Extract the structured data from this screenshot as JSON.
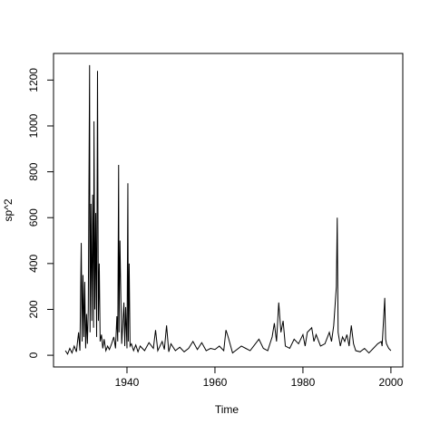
{
  "chart_data": {
    "type": "line",
    "xlabel": "Time",
    "ylabel": "sp^2",
    "x": [
      1926.0,
      1926.5,
      1927.0,
      1927.5,
      1928.0,
      1928.5,
      1929.0,
      1929.3,
      1929.6,
      1929.8,
      1930.0,
      1930.2,
      1930.4,
      1930.6,
      1930.8,
      1931.0,
      1931.2,
      1931.5,
      1931.6,
      1931.8,
      1932.0,
      1932.2,
      1932.4,
      1932.5,
      1932.7,
      1932.9,
      1933.1,
      1933.3,
      1933.5,
      1933.7,
      1933.9,
      1934.2,
      1934.5,
      1934.8,
      1935.2,
      1935.6,
      1936.0,
      1936.5,
      1937.0,
      1937.4,
      1937.7,
      1937.9,
      1938.1,
      1938.2,
      1938.4,
      1938.6,
      1938.8,
      1939.0,
      1939.3,
      1939.5,
      1939.7,
      1940.0,
      1940.2,
      1940.3,
      1940.5,
      1940.7,
      1941.0,
      1941.5,
      1942.0,
      1942.5,
      1943.0,
      1944.0,
      1945.0,
      1946.0,
      1946.5,
      1947.0,
      1948.0,
      1948.5,
      1949.0,
      1949.5,
      1950.0,
      1951.0,
      1952.0,
      1953.0,
      1954.0,
      1955.0,
      1956.0,
      1957.0,
      1958.0,
      1959.0,
      1960.0,
      1961.0,
      1962.0,
      1962.5,
      1963.0,
      1964.0,
      1965.0,
      1966.0,
      1967.0,
      1968.0,
      1969.0,
      1970.0,
      1971.0,
      1972.0,
      1973.0,
      1973.5,
      1974.0,
      1974.5,
      1975.0,
      1975.5,
      1976.0,
      1977.0,
      1978.0,
      1979.0,
      1980.0,
      1980.5,
      1981.0,
      1982.0,
      1982.5,
      1983.0,
      1984.0,
      1985.0,
      1986.0,
      1986.5,
      1987.0,
      1987.6,
      1987.8,
      1988.0,
      1988.5,
      1989.0,
      1989.5,
      1990.0,
      1990.5,
      1991.0,
      1991.5,
      1992.0,
      1993.0,
      1994.0,
      1995.0,
      1996.0,
      1997.0,
      1997.8,
      1998.0,
      1998.6,
      1998.8,
      1999.0,
      1999.5,
      2000.0
    ],
    "series": [
      {
        "name": "sp^2",
        "color": "#000000",
        "values": [
          20,
          5,
          30,
          10,
          40,
          15,
          100,
          20,
          490,
          60,
          350,
          80,
          320,
          30,
          180,
          50,
          200,
          1265,
          100,
          660,
          150,
          700,
          120,
          1020,
          200,
          620,
          80,
          1240,
          150,
          400,
          60,
          90,
          30,
          70,
          20,
          40,
          25,
          50,
          80,
          30,
          170,
          60,
          830,
          100,
          500,
          260,
          50,
          120,
          230,
          40,
          210,
          30,
          750,
          60,
          400,
          40,
          50,
          20,
          45,
          15,
          40,
          20,
          55,
          30,
          110,
          20,
          60,
          25,
          130,
          15,
          50,
          20,
          35,
          15,
          30,
          60,
          25,
          55,
          20,
          30,
          25,
          40,
          20,
          110,
          80,
          10,
          25,
          40,
          30,
          20,
          45,
          70,
          30,
          20,
          80,
          140,
          60,
          230,
          100,
          150,
          40,
          30,
          70,
          50,
          90,
          40,
          100,
          120,
          60,
          90,
          40,
          50,
          100,
          60,
          130,
          300,
          600,
          100,
          40,
          80,
          60,
          90,
          40,
          130,
          50,
          20,
          15,
          30,
          10,
          30,
          50,
          60,
          40,
          250,
          70,
          50,
          30,
          20
        ]
      }
    ],
    "xlim": [
      1923.3,
      2002.7
    ],
    "ylim": [
      -51,
      1316
    ],
    "xticks": [
      1940,
      1960,
      1980,
      2000
    ],
    "yticks": [
      0,
      200,
      400,
      600,
      800,
      1000,
      1200
    ]
  }
}
